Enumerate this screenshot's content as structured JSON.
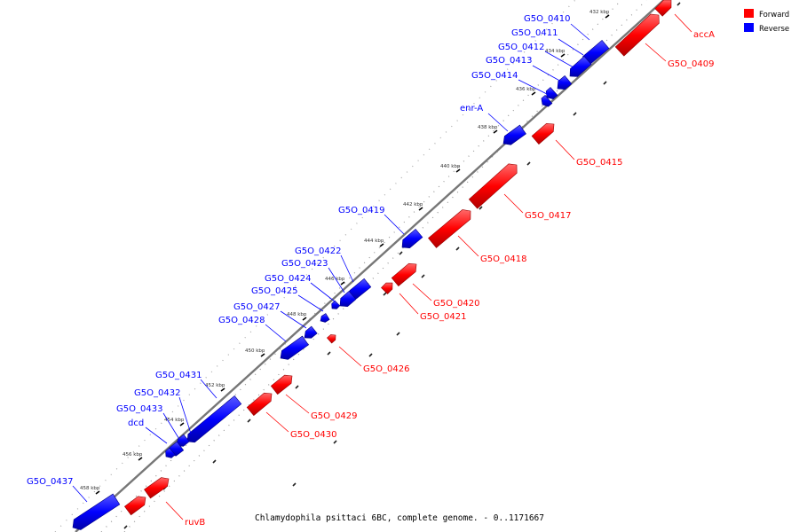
{
  "colors": {
    "forward": "#ff0000",
    "reverse": "#0000ff",
    "backbone": "#888888"
  },
  "legend": [
    {
      "label": "Forward",
      "color": "#ff0000"
    },
    {
      "label": "Reverse",
      "color": "#0000ff"
    }
  ],
  "caption": "Chlamydophila psittaci 6BC, complete genome. - 0..1171667",
  "ticks": [
    "432 kbp",
    "434 kbp",
    "436 kbp",
    "438 kbp",
    "440 kbp",
    "442 kbp",
    "444 kbp",
    "446 kbp",
    "448 kbp",
    "450 kbp",
    "452 kbp",
    "454 kbp",
    "456 kbp",
    "458 kbp"
  ],
  "reverse_genes": [
    "G5O_0410",
    "G5O_0411",
    "G5O_0412",
    "G5O_0413",
    "G5O_0414",
    "enr-A",
    "G5O_0419",
    "G5O_0422",
    "G5O_0423",
    "G5O_0424",
    "G5O_0425",
    "G5O_0427",
    "G5O_0428",
    "G5O_0431",
    "G5O_0432",
    "G5O_0433",
    "dcd",
    "G5O_0437"
  ],
  "forward_genes": [
    "accA",
    "G5O_0409",
    "G5O_0415",
    "G5O_0417",
    "G5O_0418",
    "G5O_0420",
    "G5O_0421",
    "G5O_0426",
    "G5O_0429",
    "G5O_0430",
    "ruvB"
  ]
}
